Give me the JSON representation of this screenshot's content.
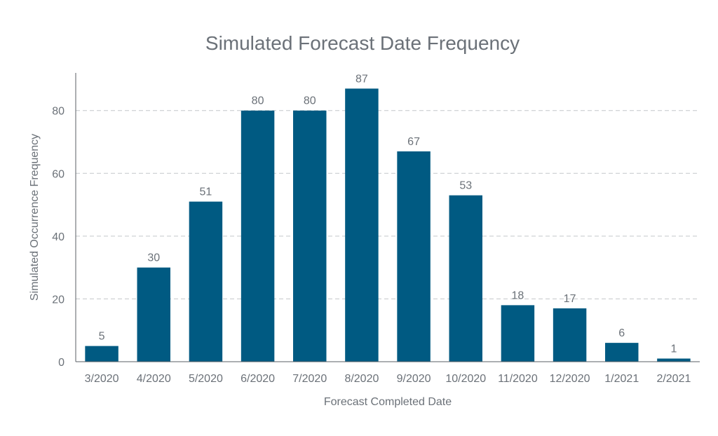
{
  "chart_data": {
    "type": "bar",
    "title": "Simulated Forecast Date Frequency",
    "xlabel": "Forecast Completed Date",
    "ylabel": "Simulated Occurrence Frequency",
    "categories": [
      "3/2020",
      "4/2020",
      "5/2020",
      "6/2020",
      "7/2020",
      "8/2020",
      "9/2020",
      "10/2020",
      "11/2020",
      "12/2020",
      "1/2021",
      "2/2021"
    ],
    "values": [
      5,
      30,
      51,
      80,
      80,
      87,
      67,
      53,
      18,
      17,
      6,
      1
    ],
    "ylim": [
      0,
      92
    ],
    "yticks": [
      0,
      20,
      40,
      60,
      80
    ],
    "grid": true,
    "colors": {
      "bar": "#005a82",
      "text": "#6b7178"
    }
  }
}
